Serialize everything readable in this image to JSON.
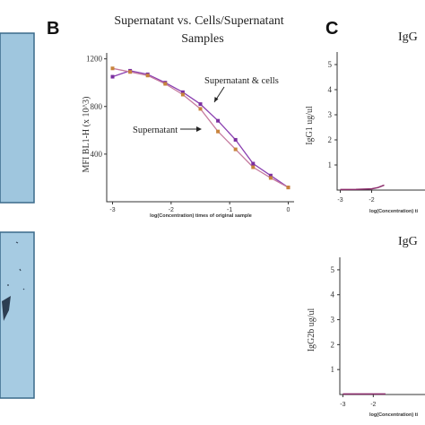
{
  "panels": {
    "b_letter": "B",
    "c_letter": "C"
  },
  "chart_data": [
    {
      "type": "line",
      "panel": "B",
      "title": "Supernatant vs. Cells/Supernatant Samples",
      "title_line1": "Supernatant vs. Cells/Supernatant",
      "title_line2": "Samples",
      "xlabel": "log(Concentration) times of original sample",
      "ylabel": "MFI BL1-H (x 10^3)",
      "xlim": [
        -3.1,
        0.1
      ],
      "ylim": [
        0,
        1250
      ],
      "xticks": [
        -3,
        -2,
        -1,
        0
      ],
      "xtick_labels": [
        "-3",
        "-2",
        "-1",
        "0"
      ],
      "yticks": [
        400,
        800,
        1200
      ],
      "ytick_labels": [
        "400",
        "800",
        "1200"
      ],
      "grid": false,
      "annotations": [
        {
          "text": "Supernatant & cells",
          "series": "cells"
        },
        {
          "text": "Supernatant",
          "series": "supernatant"
        }
      ],
      "colors": {
        "cells": "#7b2fa0",
        "supernatant": "#c8843c",
        "curve": "#b86aa6"
      },
      "series": [
        {
          "name": "Supernatant & cells",
          "x": [
            -3.0,
            -2.7,
            -2.4,
            -2.1,
            -1.8,
            -1.5,
            -1.2,
            -0.9,
            -0.6,
            -0.3,
            0.0
          ],
          "y": [
            1050,
            1100,
            1070,
            1000,
            920,
            820,
            680,
            520,
            320,
            220,
            120
          ]
        },
        {
          "name": "Supernatant",
          "x": [
            -3.0,
            -2.7,
            -2.4,
            -2.1,
            -1.8,
            -1.5,
            -1.2,
            -0.9,
            -0.6,
            -0.3,
            0.0
          ],
          "y": [
            1120,
            1090,
            1060,
            990,
            900,
            780,
            590,
            440,
            290,
            200,
            120
          ]
        }
      ]
    },
    {
      "type": "line",
      "panel": "C-top",
      "title": "IgG",
      "ylabel": "IgG1 ug/ul",
      "xlabel": "log(Concentration) ti",
      "ylim": [
        0,
        5.5
      ],
      "yticks": [
        1,
        2,
        3,
        4,
        5
      ],
      "ytick_labels": [
        "1",
        "2",
        "3",
        "4",
        "5"
      ],
      "xtick_labels": [
        "-3",
        "-2"
      ],
      "series": [
        {
          "x": [
            -3.0,
            -2.5,
            -2.0,
            -1.8,
            -1.6
          ],
          "y": [
            0.02,
            0.03,
            0.05,
            0.1,
            0.2
          ]
        }
      ]
    },
    {
      "type": "line",
      "panel": "C-bottom",
      "title": "IgG",
      "ylabel": "IgG2b ug/ul",
      "xlabel": "log(Concentration) ti",
      "ylim": [
        0,
        5.5
      ],
      "yticks": [
        1,
        2,
        3,
        4,
        5
      ],
      "ytick_labels": [
        "1",
        "2",
        "3",
        "4",
        "5"
      ],
      "xtick_labels": [
        "-3",
        "-2"
      ],
      "series": [
        {
          "x": [
            -3.0,
            -2.5,
            -2.0,
            -1.8,
            -1.6
          ],
          "y": [
            0.02,
            0.02,
            0.02,
            0.02,
            0.02
          ]
        }
      ]
    }
  ]
}
